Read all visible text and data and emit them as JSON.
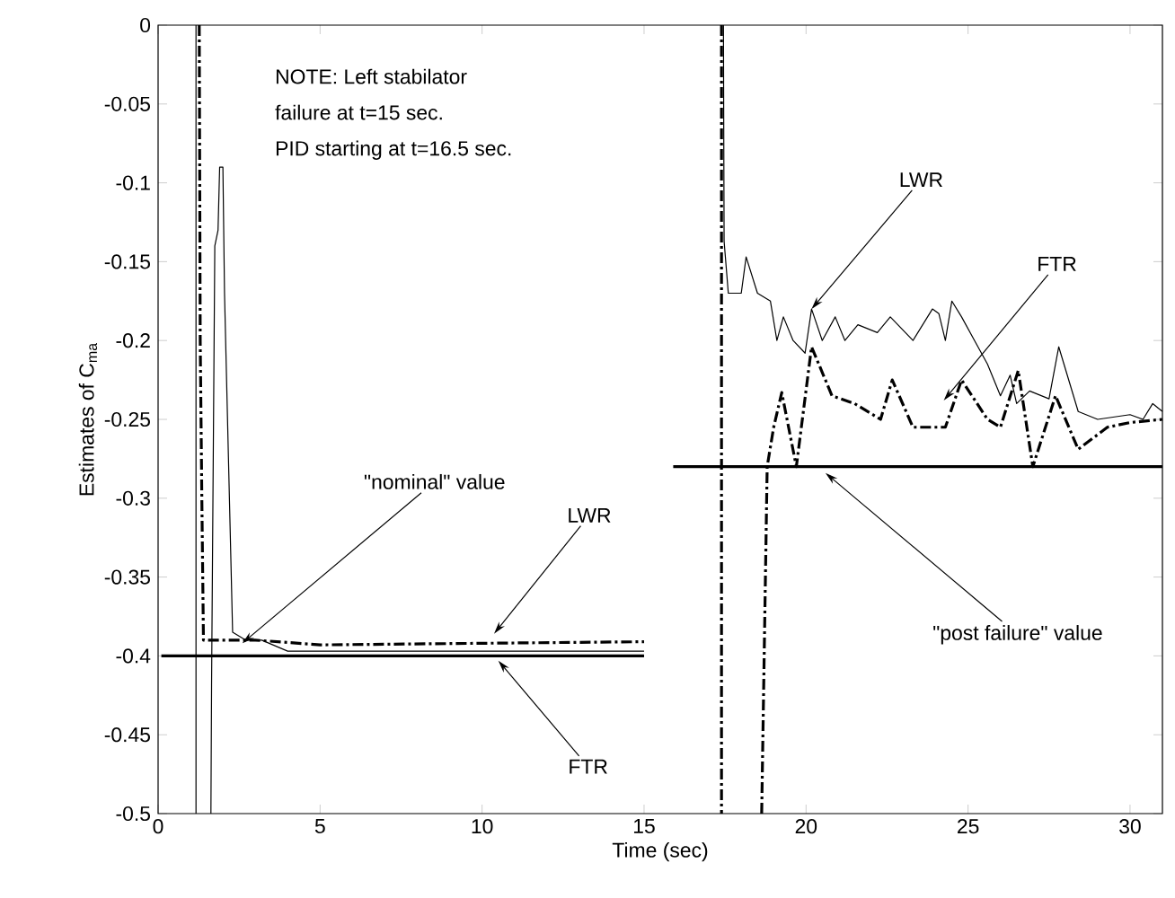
{
  "chart_data": {
    "type": "line",
    "xlabel": "Time (sec)",
    "ylabel": "Estimates of C$_{ma}$",
    "xlim": [
      0,
      31
    ],
    "ylim": [
      -0.5,
      0
    ],
    "xticks": [
      0,
      5,
      10,
      15,
      20,
      25,
      30
    ],
    "yticks": [
      -0.5,
      -0.45,
      -0.4,
      -0.35,
      -0.3,
      -0.25,
      -0.2,
      -0.15,
      -0.1,
      -0.05,
      0
    ],
    "series": [
      {
        "color": "#000000",
        "line_style": "solid",
        "x": [
          1.17,
          1.17,
          1.4,
          1.63,
          1.65,
          1.75,
          1.85,
          1.9,
          2.0,
          2.05,
          2.3,
          2.7,
          3.2,
          4,
          5,
          10,
          15,
          16,
          17.45,
          17.47,
          17.6,
          18.0,
          18.15,
          18.5,
          18.9,
          19.1,
          19.3,
          19.6,
          19.97,
          20.17,
          20.5,
          20.9,
          21.2,
          21.6,
          22.2,
          22.6,
          23.3,
          23.9,
          24.1,
          24.3,
          24.5,
          24.8,
          25.2,
          25.6,
          26.0,
          26.3,
          26.5,
          26.9,
          27.5,
          27.8,
          28.4,
          29,
          30,
          30.4,
          30.7,
          31
        ],
        "values": [
          0,
          -0.5,
          null,
          -0.5,
          -0.42,
          -0.14,
          -0.13,
          -0.09,
          -0.09,
          -0.17,
          -0.385,
          -0.39,
          -0.39,
          -0.397,
          -0.397,
          -0.397,
          -0.397,
          null,
          0,
          -0.137,
          -0.17,
          -0.17,
          -0.147,
          -0.17,
          -0.175,
          -0.2,
          -0.185,
          -0.2,
          -0.208,
          -0.18,
          -0.2,
          -0.185,
          -0.2,
          -0.19,
          -0.195,
          -0.185,
          -0.2,
          -0.18,
          -0.183,
          -0.2,
          -0.175,
          -0.185,
          -0.2,
          -0.215,
          -0.235,
          -0.222,
          -0.24,
          -0.232,
          -0.237,
          -0.204,
          -0.245,
          -0.25,
          -0.247,
          -0.25,
          -0.24,
          -0.245
        ]
      },
      {
        "color": "#000000",
        "line_style": "dashdot",
        "x": [
          1.27,
          1.3,
          1.35,
          1.4,
          2.0,
          3,
          5,
          10,
          15,
          16,
          17.39,
          17.39,
          18,
          18.63,
          18.8,
          19.0,
          19.25,
          19.7,
          20.17,
          20.8,
          21.5,
          22.3,
          22.66,
          23.3,
          24.3,
          24.8,
          25.6,
          26.0,
          26.55,
          27.0,
          27.7,
          28.4,
          29.3,
          30,
          31
        ],
        "values": [
          0,
          -0.2,
          -0.3,
          -0.39,
          -0.39,
          -0.39,
          -0.393,
          -0.392,
          -0.391,
          null,
          0,
          -0.5,
          null,
          -0.5,
          -0.28,
          -0.255,
          -0.233,
          -0.28,
          -0.204,
          -0.235,
          -0.24,
          -0.25,
          -0.225,
          -0.255,
          -0.255,
          -0.225,
          -0.25,
          -0.255,
          -0.219,
          -0.28,
          -0.235,
          -0.269,
          -0.255,
          -0.252,
          -0.25
        ]
      },
      {
        "color": "#000000",
        "line_style": "solid",
        "x": [
          0.1,
          15
        ],
        "values": [
          -0.4,
          -0.4
        ]
      },
      {
        "color": "#000000",
        "line_style": "solid",
        "x": [
          15.9,
          31
        ],
        "values": [
          -0.28,
          -0.28
        ]
      }
    ],
    "annotations": [
      "NOTE: Left stabilator",
      "failure at t=15 sec.",
      "PID starting at t=16.5 sec.",
      {
        "text": "\"nominal\" value",
        "x": 2.6,
        "y": -0.392
      },
      {
        "text": "LWR",
        "x": 10.37,
        "y": -0.386
      },
      {
        "text": "FTR",
        "x": 10.5,
        "y": -0.403
      },
      {
        "text": "LWR",
        "x": 20.17,
        "y": -0.18
      },
      {
        "text": "FTR",
        "x": 24.25,
        "y": -0.238
      },
      {
        "text": "\"post failure\" value",
        "x": 20.6,
        "y": -0.284
      }
    ]
  }
}
